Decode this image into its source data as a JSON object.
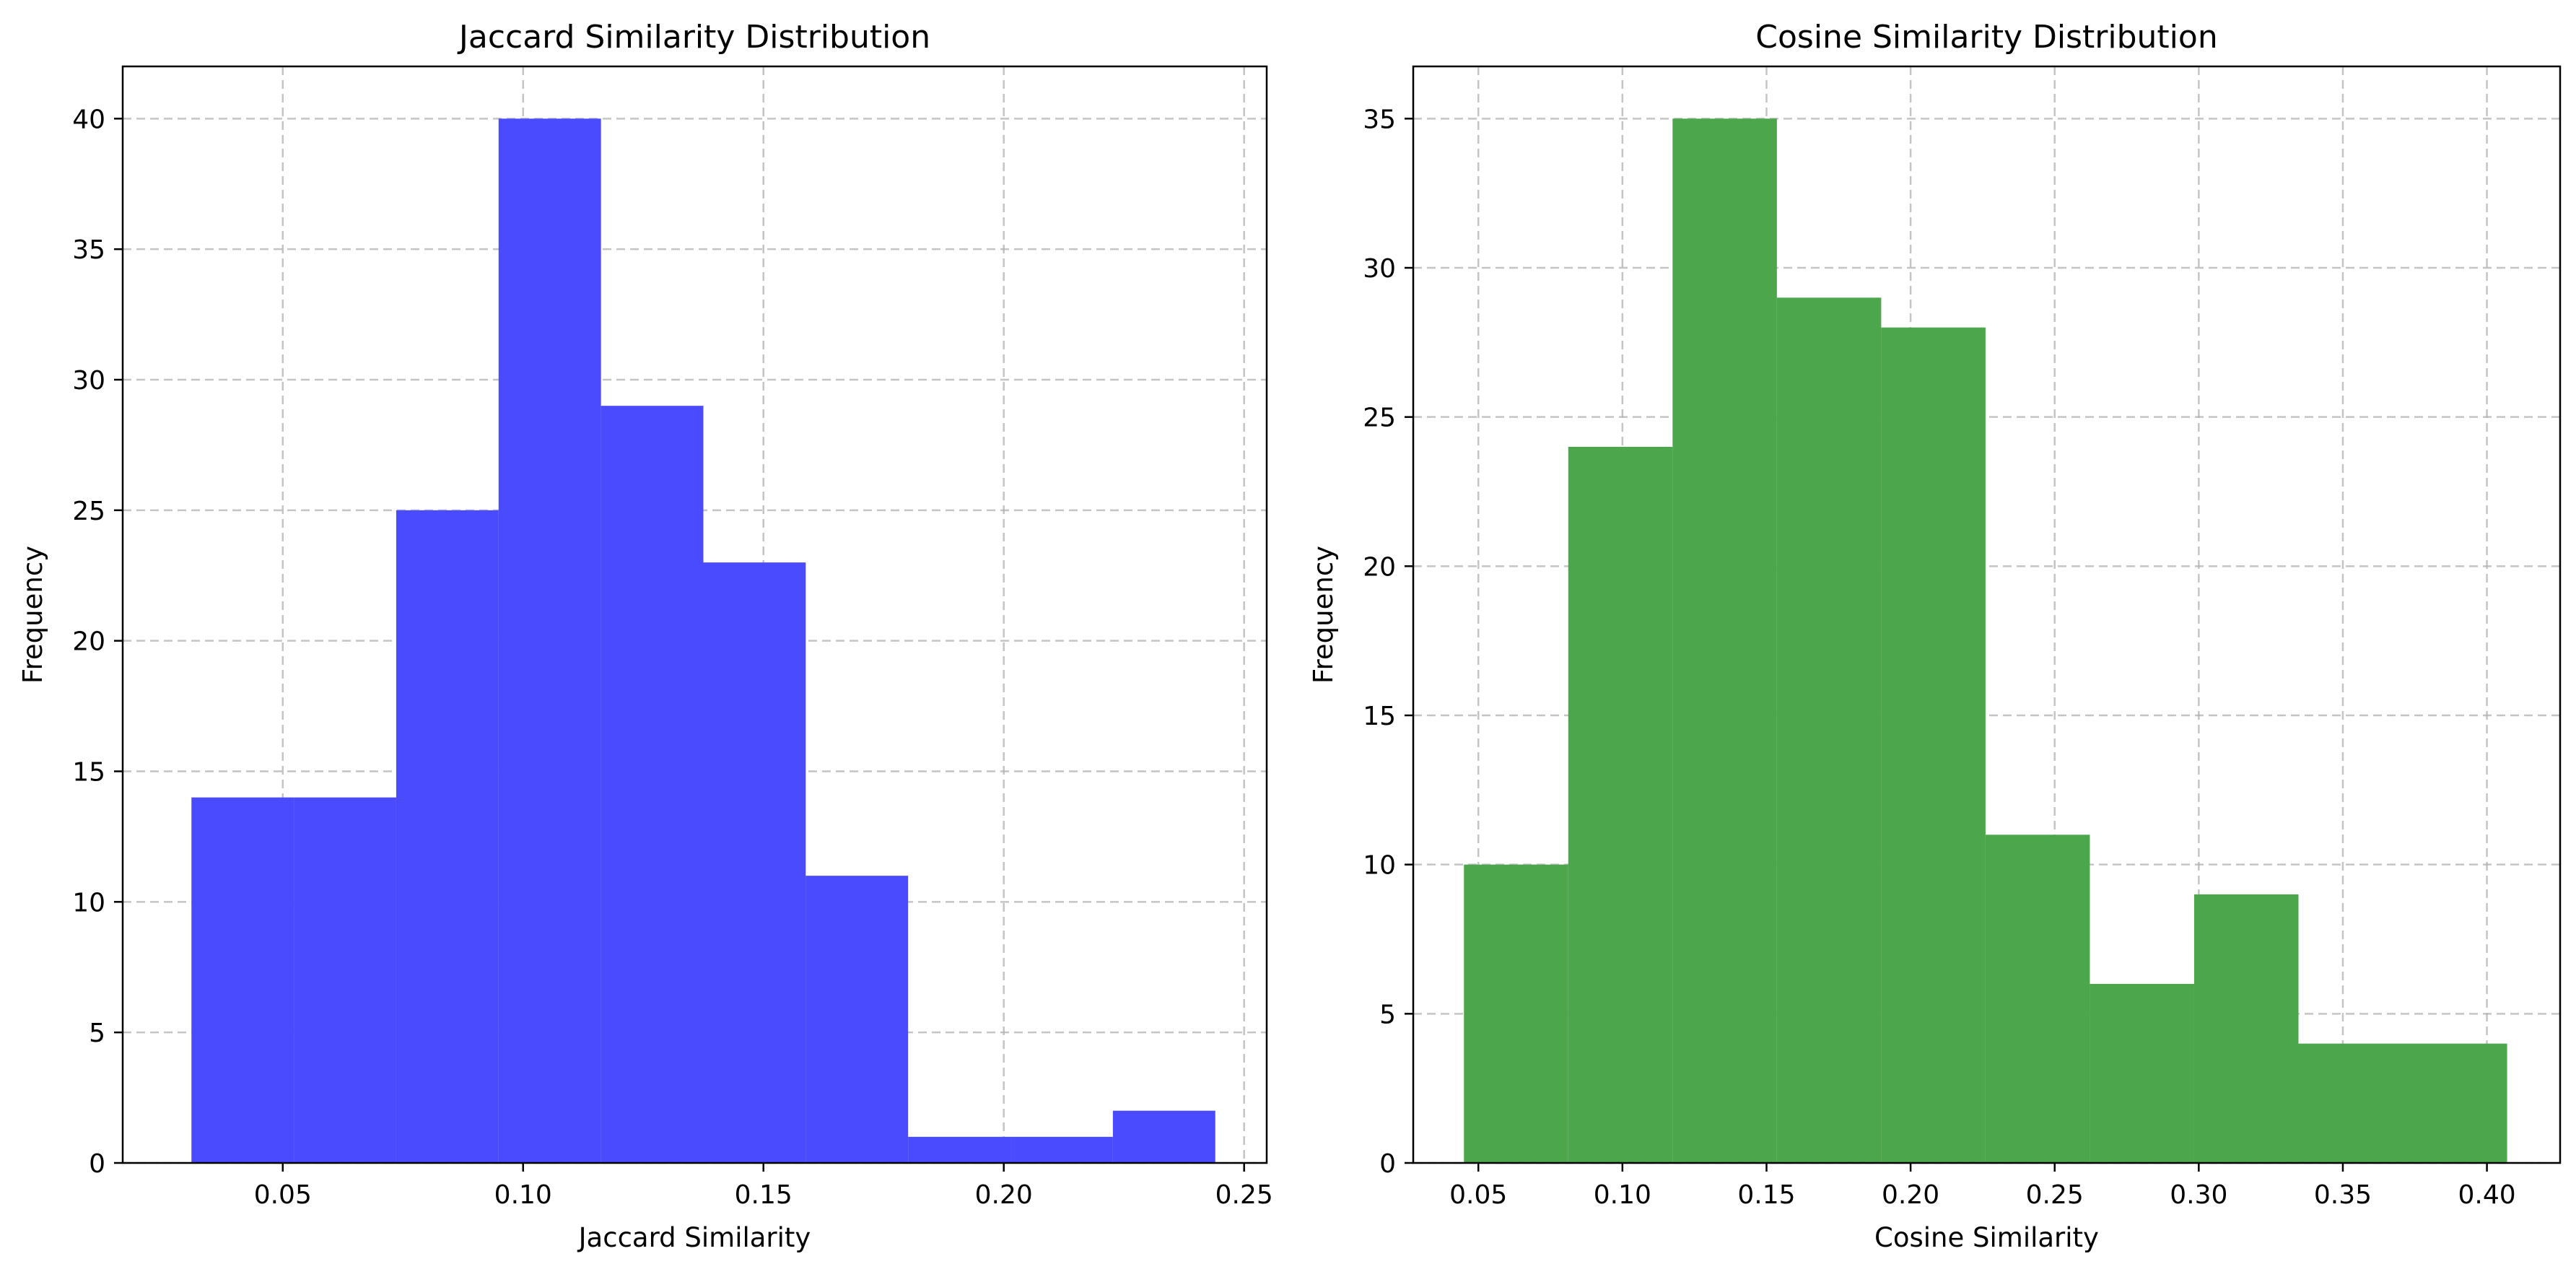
{
  "chart_data": [
    {
      "type": "bar",
      "title": "Jaccard Similarity Distribution",
      "xlabel": "Jaccard Similarity",
      "ylabel": "Frequency",
      "bar_color": "#4a4aff",
      "grid": true,
      "xlim": [
        0.0167,
        0.2547
      ],
      "ylim": [
        0,
        42
      ],
      "xticks": [
        0.05,
        0.1,
        0.15,
        0.2,
        0.25
      ],
      "xtick_labels": [
        "0.05",
        "0.10",
        "0.15",
        "0.20",
        "0.25"
      ],
      "yticks": [
        0,
        5,
        10,
        15,
        20,
        25,
        30,
        35,
        40
      ],
      "ytick_labels": [
        "0",
        "5",
        "10",
        "15",
        "20",
        "25",
        "30",
        "35",
        "40"
      ],
      "bin_edges": [
        0.031,
        0.0523,
        0.0736,
        0.0949,
        0.1162,
        0.1375,
        0.1588,
        0.1801,
        0.2014,
        0.2227,
        0.244
      ],
      "values": [
        14,
        14,
        25,
        40,
        29,
        23,
        11,
        1,
        1,
        2
      ]
    },
    {
      "type": "bar",
      "title": "Cosine Similarity Distribution",
      "xlabel": "Cosine Similarity",
      "ylabel": "Frequency",
      "bar_color": "#4ca64c",
      "grid": true,
      "xlim": [
        0.0274,
        0.4254
      ],
      "ylim": [
        0,
        36.75
      ],
      "xticks": [
        0.05,
        0.1,
        0.15,
        0.2,
        0.25,
        0.3,
        0.35,
        0.4
      ],
      "xtick_labels": [
        "0.05",
        "0.10",
        "0.15",
        "0.20",
        "0.25",
        "0.30",
        "0.35",
        "0.40"
      ],
      "yticks": [
        0,
        5,
        10,
        15,
        20,
        25,
        30,
        35
      ],
      "ytick_labels": [
        "0",
        "5",
        "10",
        "15",
        "20",
        "25",
        "30",
        "35"
      ],
      "bin_edges": [
        0.045,
        0.0812,
        0.1174,
        0.1536,
        0.1898,
        0.226,
        0.2622,
        0.2984,
        0.3346,
        0.3708,
        0.407
      ],
      "values": [
        10,
        24,
        35,
        29,
        28,
        11,
        6,
        9,
        4,
        4
      ]
    }
  ]
}
